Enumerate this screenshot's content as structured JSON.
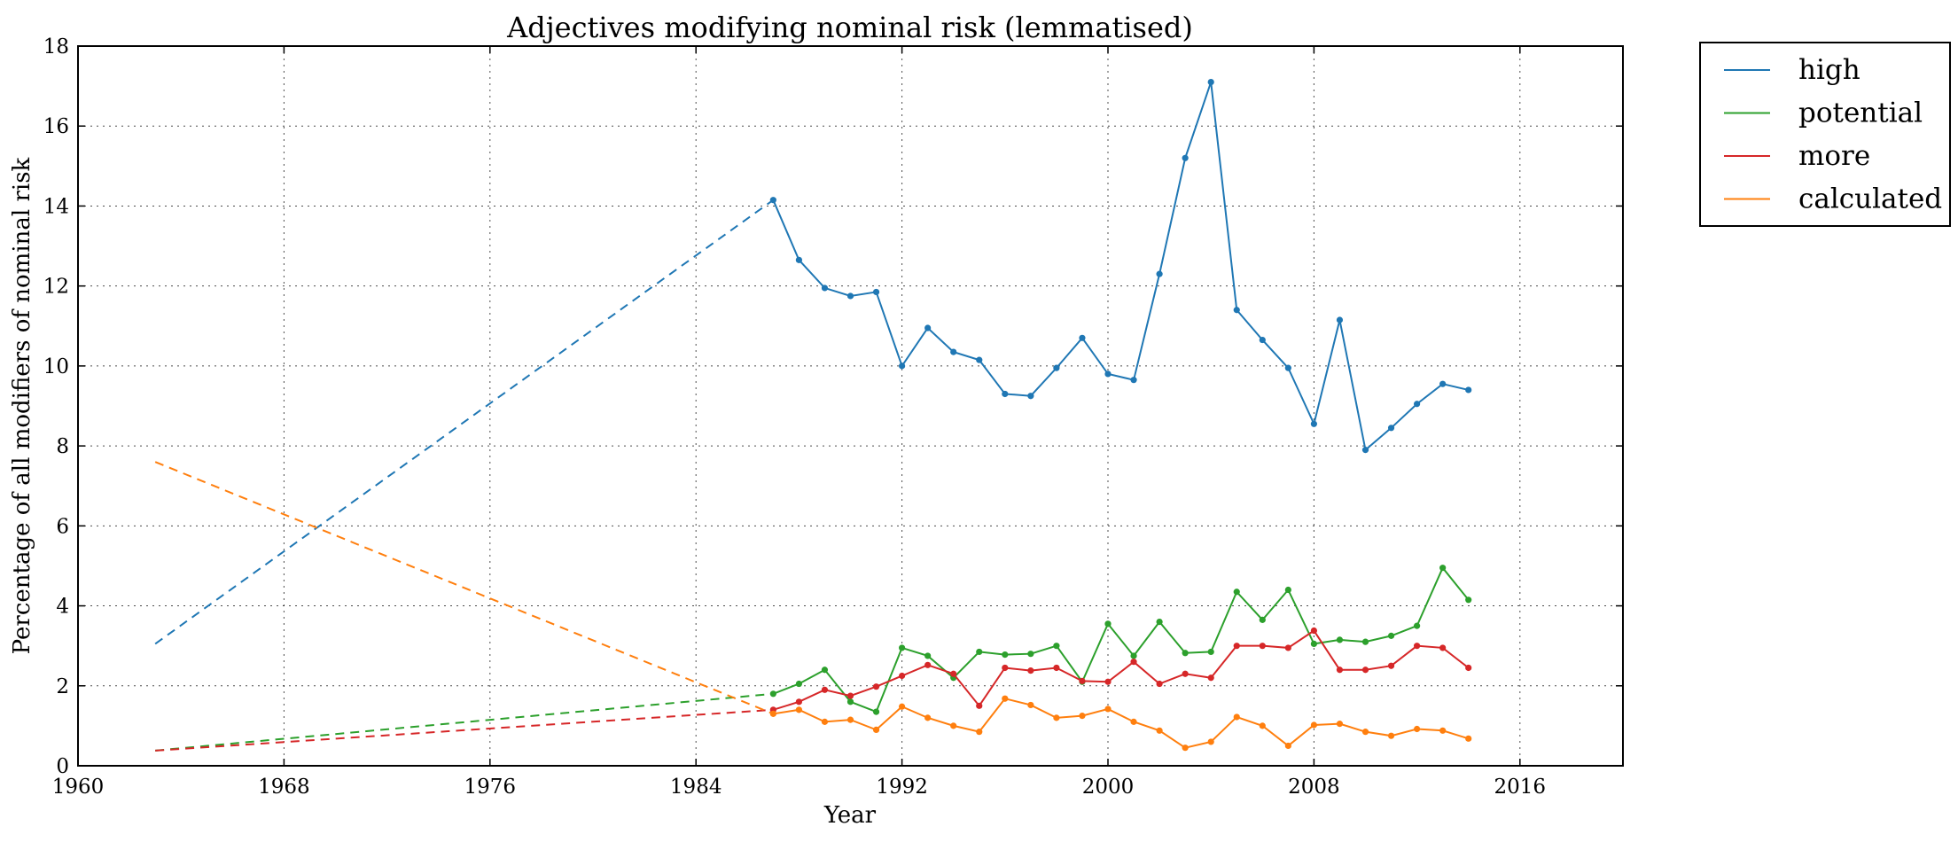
{
  "chart_data": {
    "type": "line",
    "title": "Adjectives modifying nominal risk (lemmatised)",
    "xlabel": "Year",
    "ylabel": "Percentage of all modifiers of nominal risk",
    "xlim": [
      1960,
      2020
    ],
    "ylim": [
      0,
      18
    ],
    "x_ticks": [
      1960,
      1968,
      1976,
      1984,
      1992,
      2000,
      2008,
      2016
    ],
    "y_ticks": [
      0,
      2,
      4,
      6,
      8,
      10,
      12,
      14,
      16,
      18
    ],
    "grid": true,
    "legend_position": "outside top-right",
    "series": [
      {
        "name": "high",
        "color": "#1f77b4",
        "extrapolation": {
          "x": [
            1963,
            1987
          ],
          "y": [
            3.05,
            14.15
          ]
        },
        "x": [
          1987,
          1988,
          1989,
          1990,
          1991,
          1992,
          1993,
          1994,
          1995,
          1996,
          1997,
          1998,
          1999,
          2000,
          2001,
          2002,
          2003,
          2004,
          2005,
          2006,
          2007,
          2008,
          2009,
          2010,
          2011,
          2012,
          2013,
          2014
        ],
        "y": [
          14.15,
          12.65,
          11.95,
          11.75,
          11.85,
          10.0,
          10.95,
          10.35,
          10.15,
          9.3,
          9.25,
          9.95,
          10.7,
          9.8,
          9.65,
          12.3,
          15.2,
          17.1,
          11.4,
          10.65,
          9.95,
          8.55,
          11.15,
          7.9,
          8.45,
          9.05,
          9.55,
          9.4
        ]
      },
      {
        "name": "potential",
        "color": "#2ca02c",
        "extrapolation": {
          "x": [
            1963,
            1987
          ],
          "y": [
            0.38,
            1.8
          ]
        },
        "x": [
          1987,
          1988,
          1989,
          1990,
          1991,
          1992,
          1993,
          1994,
          1995,
          1996,
          1997,
          1998,
          1999,
          2000,
          2001,
          2002,
          2003,
          2004,
          2005,
          2006,
          2007,
          2008,
          2009,
          2010,
          2011,
          2012,
          2013,
          2014
        ],
        "y": [
          1.8,
          2.05,
          2.4,
          1.6,
          1.35,
          2.95,
          2.75,
          2.2,
          2.85,
          2.78,
          2.8,
          3.0,
          2.1,
          3.55,
          2.75,
          3.6,
          2.82,
          2.85,
          4.35,
          3.65,
          4.4,
          3.05,
          3.15,
          3.1,
          3.25,
          3.5,
          4.95,
          4.15
        ]
      },
      {
        "name": "more",
        "color": "#d62728",
        "extrapolation": {
          "x": [
            1963,
            1987
          ],
          "y": [
            0.38,
            1.4
          ]
        },
        "x": [
          1987,
          1988,
          1989,
          1990,
          1991,
          1992,
          1993,
          1994,
          1995,
          1996,
          1997,
          1998,
          1999,
          2000,
          2001,
          2002,
          2003,
          2004,
          2005,
          2006,
          2007,
          2008,
          2009,
          2010,
          2011,
          2012,
          2013,
          2014
        ],
        "y": [
          1.4,
          1.6,
          1.9,
          1.75,
          1.98,
          2.25,
          2.52,
          2.3,
          1.5,
          2.45,
          2.38,
          2.45,
          2.12,
          2.1,
          2.6,
          2.05,
          2.3,
          2.2,
          3.0,
          3.0,
          2.95,
          3.38,
          2.4,
          2.4,
          2.5,
          3.0,
          2.95,
          2.45
        ]
      },
      {
        "name": "calculated",
        "color": "#ff7f0e",
        "extrapolation": {
          "x": [
            1963,
            1987
          ],
          "y": [
            7.6,
            1.3
          ]
        },
        "x": [
          1987,
          1988,
          1989,
          1990,
          1991,
          1992,
          1993,
          1994,
          1995,
          1996,
          1997,
          1998,
          1999,
          2000,
          2001,
          2002,
          2003,
          2004,
          2005,
          2006,
          2007,
          2008,
          2009,
          2010,
          2011,
          2012,
          2013,
          2014
        ],
        "y": [
          1.3,
          1.4,
          1.1,
          1.15,
          0.9,
          1.48,
          1.2,
          1.0,
          0.85,
          1.68,
          1.52,
          1.2,
          1.25,
          1.42,
          1.1,
          0.88,
          0.45,
          0.6,
          1.22,
          1.0,
          0.5,
          1.02,
          1.05,
          0.85,
          0.75,
          0.92,
          0.88,
          0.68
        ]
      }
    ]
  }
}
